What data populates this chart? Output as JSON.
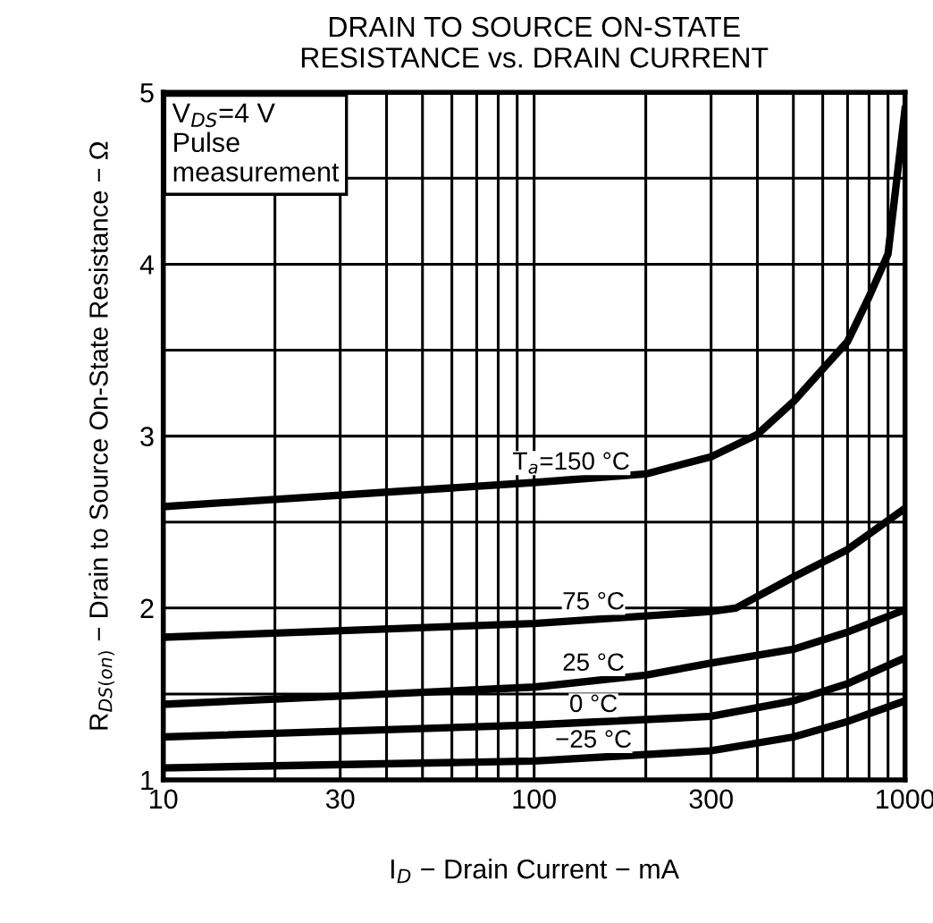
{
  "chart_data": {
    "type": "line",
    "title": "DRAIN TO SOURCE ON-STATE\nRESISTANCE vs. DRAIN CURRENT",
    "xlabel": "I$_{D}$ − Drain Current − mA",
    "ylabel": "R$_{DS(on)}$ − Drain to Source On-State Resistance − Ω",
    "log": "x",
    "grid": true,
    "legend": false,
    "marker": "none",
    "line_style": "solid",
    "xlim": [
      10,
      1000
    ],
    "ylim": [
      1,
      5
    ],
    "xticks": [
      10,
      {
        "value": 20,
        "label": null
      },
      30,
      {
        "value": 40,
        "label": null
      },
      {
        "value": 50,
        "label": null
      },
      {
        "value": 60,
        "label": null
      },
      {
        "value": 70,
        "label": null
      },
      {
        "value": 80,
        "label": null
      },
      {
        "value": 90,
        "label": null
      },
      100,
      {
        "value": 200,
        "label": null
      },
      300,
      {
        "value": 400,
        "label": null
      },
      {
        "value": 500,
        "label": null
      },
      {
        "value": 600,
        "label": null
      },
      {
        "value": 700,
        "label": null
      },
      {
        "value": 800,
        "label": null
      },
      {
        "value": 900,
        "label": null
      },
      1000
    ],
    "yticks": [
      1,
      {
        "value": 1.5,
        "label": null
      },
      2,
      {
        "value": 2.5,
        "label": null
      },
      3,
      {
        "value": 3.5,
        "label": null
      },
      4,
      {
        "value": 4.5,
        "label": null
      },
      5
    ],
    "annotations": [
      "V$_{DS}$=4 V\nPulse\nmeasurement"
    ],
    "series": [
      {
        "name": "T$_{a}$=150 °C",
        "color": "#000000",
        "x": [
          10,
          100,
          200,
          300,
          400,
          500,
          600,
          700,
          800,
          900,
          1000
        ],
        "values": [
          2.59,
          2.73,
          2.78,
          2.88,
          3.01,
          3.2,
          3.39,
          3.55,
          3.81,
          4.06,
          4.9
        ]
      },
      {
        "name": "75 °C",
        "color": "#000000",
        "x": [
          10,
          100,
          300,
          350,
          500,
          700,
          1000
        ],
        "values": [
          1.83,
          1.91,
          1.98,
          2.0,
          2.18,
          2.34,
          2.58
        ]
      },
      {
        "name": "25 °C",
        "color": "#000000",
        "x": [
          10,
          100,
          200,
          300,
          500,
          700,
          1000
        ],
        "values": [
          1.44,
          1.54,
          1.61,
          1.68,
          1.76,
          1.86,
          1.99
        ]
      },
      {
        "name": "0 °C",
        "color": "#000000",
        "x": [
          10,
          100,
          300,
          500,
          700,
          1000
        ],
        "values": [
          1.25,
          1.32,
          1.37,
          1.46,
          1.56,
          1.71
        ]
      },
      {
        "name": "−25 °C",
        "color": "#000000",
        "x": [
          10,
          100,
          300,
          500,
          700,
          1000
        ],
        "values": [
          1.07,
          1.11,
          1.17,
          1.25,
          1.34,
          1.46
        ]
      }
    ]
  }
}
